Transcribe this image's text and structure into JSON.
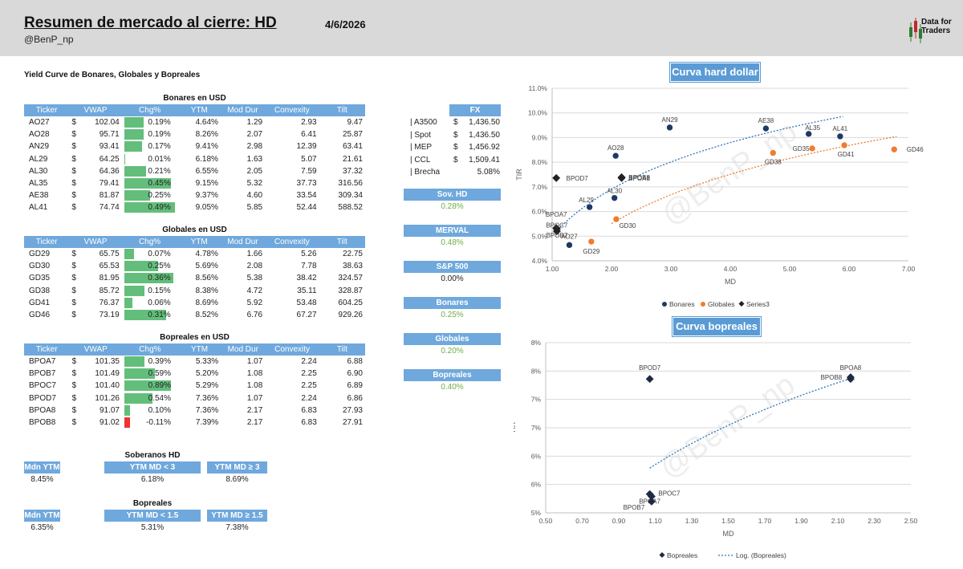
{
  "header": {
    "title": "Resumen de mercado al cierre: HD",
    "date": "4/6/2026",
    "handle": "@BenP_np",
    "logo_line1": "Data for",
    "logo_line2": "Traders"
  },
  "section_title": "Yield Curve de Bonares, Globales y Bopreales",
  "columns": [
    "Ticker",
    "VWAP",
    "Chg%",
    "YTM",
    "Mod Dur",
    "Convexity",
    "Tilt"
  ],
  "bonares": {
    "title": "Bonares en USD",
    "rows": [
      {
        "ticker": "AO27",
        "cur": "$",
        "vwap": "102.04",
        "chg": "0.19%",
        "chg_v": 0.19,
        "ytm": "4.64%",
        "md": "1.29",
        "conv": "2.93",
        "tilt": "9.47"
      },
      {
        "ticker": "AO28",
        "cur": "$",
        "vwap": "95.71",
        "chg": "0.19%",
        "chg_v": 0.19,
        "ytm": "8.26%",
        "md": "2.07",
        "conv": "6.41",
        "tilt": "25.87"
      },
      {
        "ticker": "AN29",
        "cur": "$",
        "vwap": "93.41",
        "chg": "0.17%",
        "chg_v": 0.17,
        "ytm": "9.41%",
        "md": "2.98",
        "conv": "12.39",
        "tilt": "63.41"
      },
      {
        "ticker": "AL29",
        "cur": "$",
        "vwap": "64.25",
        "chg": "0.01%",
        "chg_v": 0.01,
        "ytm": "6.18%",
        "md": "1.63",
        "conv": "5.07",
        "tilt": "21.61"
      },
      {
        "ticker": "AL30",
        "cur": "$",
        "vwap": "64.36",
        "chg": "0.21%",
        "chg_v": 0.21,
        "ytm": "6.55%",
        "md": "2.05",
        "conv": "7.59",
        "tilt": "37.32"
      },
      {
        "ticker": "AL35",
        "cur": "$",
        "vwap": "79.41",
        "chg": "0.45%",
        "chg_v": 0.45,
        "ytm": "9.15%",
        "md": "5.32",
        "conv": "37.73",
        "tilt": "316.56"
      },
      {
        "ticker": "AE38",
        "cur": "$",
        "vwap": "81.87",
        "chg": "0.25%",
        "chg_v": 0.25,
        "ytm": "9.37%",
        "md": "4.60",
        "conv": "33.54",
        "tilt": "309.34"
      },
      {
        "ticker": "AL41",
        "cur": "$",
        "vwap": "74.74",
        "chg": "0.49%",
        "chg_v": 0.49,
        "ytm": "9.05%",
        "md": "5.85",
        "conv": "52.44",
        "tilt": "588.52"
      }
    ]
  },
  "globales": {
    "title": "Globales en USD",
    "rows": [
      {
        "ticker": "GD29",
        "cur": "$",
        "vwap": "65.75",
        "chg": "0.07%",
        "chg_v": 0.07,
        "ytm": "4.78%",
        "md": "1.66",
        "conv": "5.26",
        "tilt": "22.75"
      },
      {
        "ticker": "GD30",
        "cur": "$",
        "vwap": "65.53",
        "chg": "0.25%",
        "chg_v": 0.25,
        "ytm": "5.69%",
        "md": "2.08",
        "conv": "7.78",
        "tilt": "38.63"
      },
      {
        "ticker": "GD35",
        "cur": "$",
        "vwap": "81.95",
        "chg": "0.36%",
        "chg_v": 0.36,
        "ytm": "8.56%",
        "md": "5.38",
        "conv": "38.42",
        "tilt": "324.57"
      },
      {
        "ticker": "GD38",
        "cur": "$",
        "vwap": "85.72",
        "chg": "0.15%",
        "chg_v": 0.15,
        "ytm": "8.38%",
        "md": "4.72",
        "conv": "35.11",
        "tilt": "328.87"
      },
      {
        "ticker": "GD41",
        "cur": "$",
        "vwap": "76.37",
        "chg": "0.06%",
        "chg_v": 0.06,
        "ytm": "8.69%",
        "md": "5.92",
        "conv": "53.48",
        "tilt": "604.25"
      },
      {
        "ticker": "GD46",
        "cur": "$",
        "vwap": "73.19",
        "chg": "0.31%",
        "chg_v": 0.31,
        "ytm": "8.52%",
        "md": "6.76",
        "conv": "67.27",
        "tilt": "929.26"
      }
    ]
  },
  "bopreales": {
    "title": "Bopreales en USD",
    "rows": [
      {
        "ticker": "BPOA7",
        "cur": "$",
        "vwap": "101.35",
        "chg": "0.39%",
        "chg_v": 0.39,
        "ytm": "5.33%",
        "md": "1.07",
        "conv": "2.24",
        "tilt": "6.88"
      },
      {
        "ticker": "BPOB7",
        "cur": "$",
        "vwap": "101.49",
        "chg": "0.59%",
        "chg_v": 0.59,
        "ytm": "5.20%",
        "md": "1.08",
        "conv": "2.25",
        "tilt": "6.90"
      },
      {
        "ticker": "BPOC7",
        "cur": "$",
        "vwap": "101.40",
        "chg": "0.89%",
        "chg_v": 0.89,
        "ytm": "5.29%",
        "md": "1.08",
        "conv": "2.25",
        "tilt": "6.89"
      },
      {
        "ticker": "BPOD7",
        "cur": "$",
        "vwap": "101.26",
        "chg": "0.54%",
        "chg_v": 0.54,
        "ytm": "7.36%",
        "md": "1.07",
        "conv": "2.24",
        "tilt": "6.86"
      },
      {
        "ticker": "BPOA8",
        "cur": "$",
        "vwap": "91.07",
        "chg": "0.10%",
        "chg_v": 0.1,
        "ytm": "7.36%",
        "md": "2.17",
        "conv": "6.83",
        "tilt": "27.93"
      },
      {
        "ticker": "BPOB8",
        "cur": "$",
        "vwap": "91.02",
        "chg": "-0.11%",
        "chg_v": -0.11,
        "ytm": "7.39%",
        "md": "2.17",
        "conv": "6.83",
        "tilt": "27.91"
      }
    ]
  },
  "fx": {
    "title": "FX",
    "rows": [
      {
        "label": "| A3500",
        "cur": "$",
        "value": "1,436.50"
      },
      {
        "label": "| Spot",
        "cur": "$",
        "value": "1,436.50"
      },
      {
        "label": "| MEP",
        "cur": "$",
        "value": "1,456.92"
      },
      {
        "label": "| CCL",
        "cur": "$",
        "value": "1,509.41"
      },
      {
        "label": "| Brecha",
        "cur": "",
        "value": "5.08%"
      }
    ]
  },
  "indices": [
    {
      "label": "Sov. HD",
      "value": "0.28%",
      "color": "#70ad47"
    },
    {
      "label": "MERVAL",
      "value": "0.48%",
      "color": "#70ad47"
    },
    {
      "label": "S&P 500",
      "value": "0.00%",
      "color": "#222222"
    },
    {
      "label": "Bonares",
      "value": "0.25%",
      "color": "#70ad47"
    },
    {
      "label": "Globales",
      "value": "0.20%",
      "color": "#70ad47"
    },
    {
      "label": "Bopreales",
      "value": "0.40%",
      "color": "#70ad47"
    }
  ],
  "soberanos": {
    "title": "Soberanos HD",
    "heads": [
      "Mdn YTM",
      "YTM MD < 3",
      "YTM MD ≥ 3"
    ],
    "values": [
      "8.45%",
      "6.18%",
      "8.69%"
    ]
  },
  "bopreales_summary": {
    "title": "Bopreales",
    "heads": [
      "Mdn YTM",
      "YTM MD < 1.5",
      "YTM MD ≥ 1.5"
    ],
    "values": [
      "6.35%",
      "5.31%",
      "7.38%"
    ]
  },
  "watermark": "@BenP_np",
  "chart_data": [
    {
      "type": "scatter",
      "title": "Curva hard dollar",
      "xlabel": "MD",
      "ylabel": "TIR",
      "xlim": [
        1.0,
        7.0
      ],
      "ylim": [
        4.0,
        11.0
      ],
      "xticks": [
        "1.00",
        "2.00",
        "3.00",
        "4.00",
        "5.00",
        "6.00",
        "7.00"
      ],
      "yticks": [
        "4.0%",
        "5.0%",
        "6.0%",
        "7.0%",
        "8.0%",
        "9.0%",
        "10.0%",
        "11.0%"
      ],
      "legend": [
        "Bonares",
        "Globales",
        "Series3"
      ],
      "colors": {
        "Bonares": "#1f3864",
        "Globales": "#ed7d31",
        "Series3": "#222222"
      },
      "series": [
        {
          "name": "Bonares",
          "points": [
            {
              "label": "AO27",
              "x": 1.29,
              "y": 4.64
            },
            {
              "label": "AO28",
              "x": 2.07,
              "y": 8.26
            },
            {
              "label": "AN29",
              "x": 2.98,
              "y": 9.41
            },
            {
              "label": "AL29",
              "x": 1.63,
              "y": 6.18
            },
            {
              "label": "AL30",
              "x": 2.05,
              "y": 6.55
            },
            {
              "label": "AL35",
              "x": 5.32,
              "y": 9.15
            },
            {
              "label": "AE38",
              "x": 4.6,
              "y": 9.37
            },
            {
              "label": "AL41",
              "x": 5.85,
              "y": 9.05
            }
          ]
        },
        {
          "name": "Globales",
          "points": [
            {
              "label": "GD29",
              "x": 1.66,
              "y": 4.78
            },
            {
              "label": "GD30",
              "x": 2.08,
              "y": 5.69
            },
            {
              "label": "GD35",
              "x": 5.38,
              "y": 8.56
            },
            {
              "label": "GD38",
              "x": 4.72,
              "y": 8.38
            },
            {
              "label": "GD41",
              "x": 5.92,
              "y": 8.69
            },
            {
              "label": "GD46",
              "x": 6.76,
              "y": 8.52
            }
          ]
        },
        {
          "name": "Series3",
          "points": [
            {
              "label": "BPOA7",
              "x": 1.07,
              "y": 5.33
            },
            {
              "label": "BPOB7",
              "x": 1.08,
              "y": 5.2
            },
            {
              "label": "BPOC7",
              "x": 1.08,
              "y": 5.29
            },
            {
              "label": "BPOD7",
              "x": 1.07,
              "y": 7.36
            },
            {
              "label": "BPOA8",
              "x": 2.17,
              "y": 7.36
            },
            {
              "label": "BPOB8",
              "x": 2.17,
              "y": 7.39
            }
          ]
        }
      ],
      "trendlines": [
        {
          "series": "Bonares",
          "type": "log",
          "x_range": [
            1.05,
            5.9
          ],
          "color": "#2e75b6"
        },
        {
          "series": "Globales",
          "type": "log",
          "x_range": [
            2.0,
            6.8
          ],
          "color": "#ed7d31"
        }
      ]
    },
    {
      "type": "scatter",
      "title": "Curva bopreales",
      "xlabel": "MD",
      "ylabel": "TIR",
      "xlim": [
        0.5,
        2.5
      ],
      "ylim": [
        5.0,
        8.0
      ],
      "xticks": [
        "0.50",
        "0.70",
        "0.90",
        "1.10",
        "1.30",
        "1.50",
        "1.70",
        "1.90",
        "2.10",
        "2.30",
        "2.50"
      ],
      "yticks": [
        "5%",
        "6%",
        "6%",
        "7%",
        "7%",
        "8%",
        "8%"
      ],
      "legend": [
        "Bopreales",
        "Log. (Bopreales)"
      ],
      "colors": {
        "Bopreales": "#1f2a44",
        "trend": "#2e75b6"
      },
      "series": [
        {
          "name": "Bopreales",
          "points": [
            {
              "label": "BPOA7",
              "x": 1.07,
              "y": 5.33
            },
            {
              "label": "BPOB7",
              "x": 1.08,
              "y": 5.2
            },
            {
              "label": "BPOC7",
              "x": 1.08,
              "y": 5.29
            },
            {
              "label": "BPOD7",
              "x": 1.07,
              "y": 7.36
            },
            {
              "label": "BPOA8",
              "x": 2.17,
              "y": 7.36
            },
            {
              "label": "BPOB8",
              "x": 2.17,
              "y": 7.39
            }
          ]
        }
      ],
      "trendline": {
        "type": "log",
        "x_range": [
          1.07,
          2.17
        ],
        "color": "#2e75b6"
      }
    }
  ]
}
